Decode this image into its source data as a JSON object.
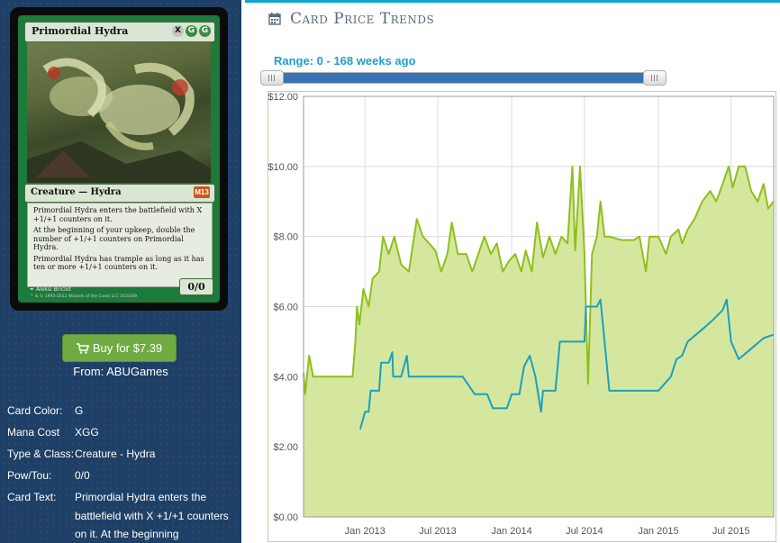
{
  "card": {
    "name": "Primordial Hydra",
    "mana_symbols": [
      "X",
      "G",
      "G"
    ],
    "type_line": "Creature — Hydra",
    "set_symbol": "M13",
    "rules_text": [
      "Primordial Hydra enters the battlefield with X +1/+1 counters on it.",
      "At the beginning of your upkeep, double the number of +1/+1 counters on Primordial Hydra.",
      "Primordial Hydra has trample as long as it has ten or more +1/+1 counters on it."
    ],
    "power_toughness": "0/0",
    "artist": "Aleksi Briclot",
    "copyright": "™ & © 1993-2012 Wizards of the Coast LLC 163/249"
  },
  "buy": {
    "label": "Buy for $7.39",
    "from": "From: ABUGames"
  },
  "details": [
    {
      "label": "Card Color:",
      "value": "G"
    },
    {
      "label": "Mana Cost",
      "value": "XGG"
    },
    {
      "label": "Type & Class:",
      "value": "Creature - Hydra"
    },
    {
      "label": "Pow/Tou:",
      "value": "0/0"
    },
    {
      "label": "Card Text:",
      "value": "Primordial Hydra enters the battlefield with X +1/+1 counters on it. At the beginning"
    }
  ],
  "panel": {
    "title": "Card Price Trends",
    "range_label": "Range: 0 - 168 weeks ago",
    "range_min_weeks": 0,
    "range_max_weeks": 168
  },
  "colors": {
    "sidebar_bg": "#1e3f66",
    "buy_button": "#6fab42",
    "accent": "#1ea1c4",
    "series_main": "#8fbf1c",
    "series_main_fill": "#d3e69a",
    "series_second": "#1ca0bf"
  },
  "chart_data": {
    "type": "line",
    "ylim": [
      0,
      12
    ],
    "y_ticks": [
      "$0.00",
      "$2.00",
      "$4.00",
      "$6.00",
      "$8.00",
      "$10.00",
      "$12.00"
    ],
    "x_ticks": [
      "Jan 2013",
      "Jul 2013",
      "Jan 2014",
      "Jul 2014",
      "Jan 2015",
      "Jul 2015"
    ],
    "x_range": [
      "2012-08-01",
      "2015-10-15"
    ],
    "grid": true,
    "series": [
      {
        "area": true,
        "points": [
          [
            "2012-08-01",
            4.1
          ],
          [
            "2012-08-05",
            3.5
          ],
          [
            "2012-08-15",
            4.6
          ],
          [
            "2012-08-25",
            4.0
          ],
          [
            "2012-09-10",
            4.0
          ],
          [
            "2012-10-01",
            4.0
          ],
          [
            "2012-11-01",
            4.0
          ],
          [
            "2012-12-01",
            4.0
          ],
          [
            "2012-12-08",
            5.0
          ],
          [
            "2012-12-12",
            6.0
          ],
          [
            "2012-12-18",
            5.5
          ],
          [
            "2012-12-28",
            6.5
          ],
          [
            "2013-01-10",
            6.0
          ],
          [
            "2013-01-20",
            6.8
          ],
          [
            "2013-02-05",
            7.0
          ],
          [
            "2013-02-15",
            8.0
          ],
          [
            "2013-03-01",
            7.5
          ],
          [
            "2013-03-15",
            8.0
          ],
          [
            "2013-04-01",
            7.2
          ],
          [
            "2013-04-20",
            7.0
          ],
          [
            "2013-05-10",
            8.5
          ],
          [
            "2013-05-25",
            8.0
          ],
          [
            "2013-06-10",
            7.8
          ],
          [
            "2013-06-25",
            7.6
          ],
          [
            "2013-07-10",
            7.0
          ],
          [
            "2013-07-25",
            7.5
          ],
          [
            "2013-08-05",
            8.4
          ],
          [
            "2013-08-20",
            7.5
          ],
          [
            "2013-09-10",
            7.5
          ],
          [
            "2013-09-25",
            7.0
          ],
          [
            "2013-10-10",
            7.5
          ],
          [
            "2013-10-25",
            8.0
          ],
          [
            "2013-11-10",
            7.5
          ],
          [
            "2013-11-25",
            7.8
          ],
          [
            "2013-12-10",
            7.0
          ],
          [
            "2013-12-25",
            7.3
          ],
          [
            "2014-01-10",
            7.5
          ],
          [
            "2014-01-25",
            7.0
          ],
          [
            "2014-02-05",
            7.6
          ],
          [
            "2014-02-20",
            7.0
          ],
          [
            "2014-03-05",
            8.4
          ],
          [
            "2014-03-20",
            7.4
          ],
          [
            "2014-04-05",
            8.0
          ],
          [
            "2014-04-20",
            7.5
          ],
          [
            "2014-05-05",
            8.0
          ],
          [
            "2014-05-20",
            7.8
          ],
          [
            "2014-06-01",
            10.0
          ],
          [
            "2014-06-08",
            7.6
          ],
          [
            "2014-06-20",
            10.0
          ],
          [
            "2014-07-01",
            7.5
          ],
          [
            "2014-07-10",
            3.8
          ],
          [
            "2014-07-20",
            7.5
          ],
          [
            "2014-08-01",
            8.0
          ],
          [
            "2014-08-10",
            9.0
          ],
          [
            "2014-08-20",
            8.0
          ],
          [
            "2014-09-01",
            8.0
          ],
          [
            "2014-10-01",
            7.9
          ],
          [
            "2014-11-01",
            7.9
          ],
          [
            "2014-11-15",
            8.0
          ],
          [
            "2014-12-01",
            7.0
          ],
          [
            "2014-12-10",
            8.0
          ],
          [
            "2015-01-01",
            8.0
          ],
          [
            "2015-01-20",
            7.5
          ],
          [
            "2015-02-01",
            8.0
          ],
          [
            "2015-02-20",
            8.2
          ],
          [
            "2015-03-01",
            7.8
          ],
          [
            "2015-03-15",
            8.2
          ],
          [
            "2015-04-01",
            8.5
          ],
          [
            "2015-04-20",
            9.0
          ],
          [
            "2015-05-10",
            9.3
          ],
          [
            "2015-05-25",
            9.0
          ],
          [
            "2015-06-10",
            9.5
          ],
          [
            "2015-06-25",
            10.0
          ],
          [
            "2015-07-05",
            9.4
          ],
          [
            "2015-07-20",
            10.0
          ],
          [
            "2015-08-05",
            10.0
          ],
          [
            "2015-08-20",
            9.3
          ],
          [
            "2015-09-05",
            9.0
          ],
          [
            "2015-09-20",
            9.5
          ],
          [
            "2015-10-01",
            8.8
          ],
          [
            "2015-10-15",
            9.0
          ]
        ]
      },
      {
        "area": false,
        "points": [
          [
            "2012-12-20",
            2.5
          ],
          [
            "2013-01-01",
            3.0
          ],
          [
            "2013-01-10",
            3.0
          ],
          [
            "2013-01-15",
            3.6
          ],
          [
            "2013-02-05",
            3.6
          ],
          [
            "2013-02-10",
            4.4
          ],
          [
            "2013-03-01",
            4.4
          ],
          [
            "2013-03-10",
            4.7
          ],
          [
            "2013-03-12",
            4.0
          ],
          [
            "2013-04-01",
            4.0
          ],
          [
            "2013-04-15",
            4.6
          ],
          [
            "2013-04-20",
            4.0
          ],
          [
            "2013-06-01",
            4.0
          ],
          [
            "2013-07-01",
            4.0
          ],
          [
            "2013-08-01",
            4.0
          ],
          [
            "2013-09-01",
            4.0
          ],
          [
            "2013-10-01",
            3.5
          ],
          [
            "2013-11-01",
            3.5
          ],
          [
            "2013-11-15",
            3.1
          ],
          [
            "2013-12-20",
            3.1
          ],
          [
            "2014-01-01",
            3.5
          ],
          [
            "2014-01-20",
            3.5
          ],
          [
            "2014-02-01",
            4.3
          ],
          [
            "2014-02-15",
            4.6
          ],
          [
            "2014-03-01",
            4.0
          ],
          [
            "2014-03-15",
            3.0
          ],
          [
            "2014-03-20",
            3.6
          ],
          [
            "2014-04-20",
            3.6
          ],
          [
            "2014-05-01",
            5.0
          ],
          [
            "2014-06-01",
            5.0
          ],
          [
            "2014-07-01",
            5.0
          ],
          [
            "2014-07-05",
            6.0
          ],
          [
            "2014-08-01",
            6.0
          ],
          [
            "2014-08-10",
            6.2
          ],
          [
            "2014-09-01",
            3.6
          ],
          [
            "2014-10-01",
            3.6
          ],
          [
            "2014-11-01",
            3.6
          ],
          [
            "2014-12-01",
            3.6
          ],
          [
            "2015-01-01",
            3.6
          ],
          [
            "2015-02-01",
            4.0
          ],
          [
            "2015-02-15",
            4.5
          ],
          [
            "2015-03-01",
            4.6
          ],
          [
            "2015-03-15",
            5.0
          ],
          [
            "2015-04-15",
            5.3
          ],
          [
            "2015-05-15",
            5.6
          ],
          [
            "2015-06-10",
            5.9
          ],
          [
            "2015-06-20",
            6.2
          ],
          [
            "2015-07-01",
            5.0
          ],
          [
            "2015-07-20",
            4.5
          ],
          [
            "2015-08-20",
            4.8
          ],
          [
            "2015-09-20",
            5.1
          ],
          [
            "2015-10-15",
            5.2
          ]
        ]
      }
    ]
  }
}
